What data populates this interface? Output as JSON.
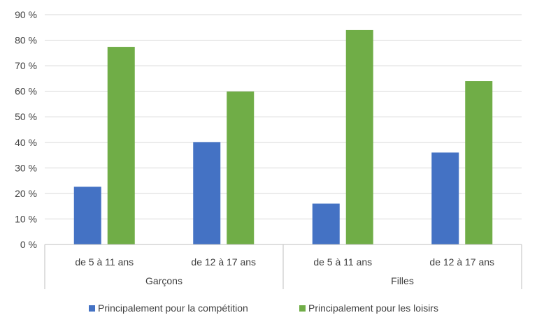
{
  "chart_data": {
    "type": "bar",
    "title": "",
    "xlabel": "",
    "ylabel": "",
    "ylim": [
      0,
      90
    ],
    "yticks": [
      0,
      10,
      20,
      30,
      40,
      50,
      60,
      70,
      80,
      90
    ],
    "ytick_labels": [
      "0 %",
      "10 %",
      "20 %",
      "30 %",
      "40 %",
      "50 %",
      "60 %",
      "70 %",
      "80 %",
      "90 %"
    ],
    "grid": true,
    "legend_position": "bottom",
    "groups": [
      {
        "label": "Garçons",
        "categories": [
          "de 5 à 11 ans",
          "de 12 à 17 ans"
        ]
      },
      {
        "label": "Filles",
        "categories": [
          "de 5 à 11 ans",
          "de 12 à 17 ans"
        ]
      }
    ],
    "categories": [
      "de 5 à 11 ans",
      "de 12 à 17 ans",
      "de 5 à 11 ans",
      "de 12 à 17 ans"
    ],
    "series": [
      {
        "name": "Principalement pour la compétition",
        "color": "#4472C4",
        "values": [
          22.6,
          40.1,
          16.0,
          36.0
        ]
      },
      {
        "name": "Principalement pour les loisirs",
        "color": "#70AD47",
        "values": [
          77.4,
          59.9,
          84.0,
          64.0
        ]
      }
    ]
  }
}
